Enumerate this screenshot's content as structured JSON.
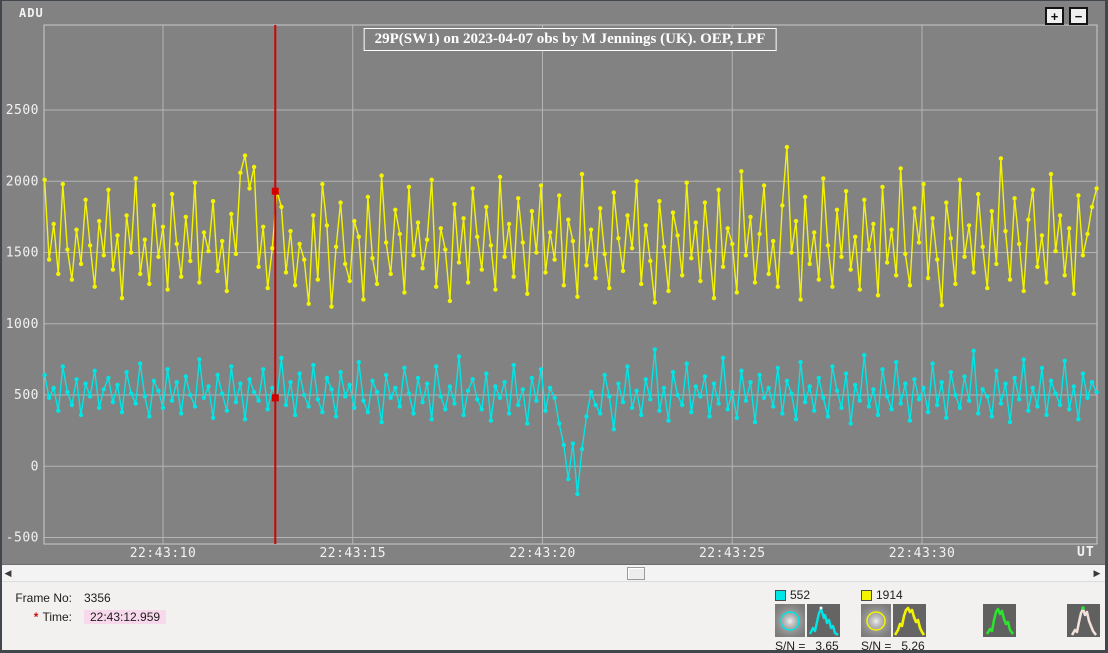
{
  "zoom_controls": {
    "zoom_in": "+",
    "zoom_out": "−"
  },
  "chart_data": {
    "type": "line",
    "title": "29P(SW1) on 2023-04-07 obs by M Jennings (UK).  OEP, LPF",
    "ylabel": "ADU",
    "xlabel": "UT",
    "ylim": [
      -560,
      3100
    ],
    "yticks": [
      2500,
      2000,
      1500,
      1000,
      500,
      0,
      -500
    ],
    "xticks": [
      {
        "t": 10,
        "label": "22:43:10"
      },
      {
        "t": 15,
        "label": "22:43:15"
      },
      {
        "t": 20,
        "label": "22:43:20"
      },
      {
        "t": 25,
        "label": "22:43:25"
      },
      {
        "t": 30,
        "label": "22:43:30"
      }
    ],
    "x_axis": {
      "prefix": "22:43:",
      "start_s": 6.88,
      "step_s": 0.12
    },
    "colors": {
      "background": "#828282",
      "grid": "#b4b4b4",
      "border": "#c9c9c9",
      "tick_text": "#f2f2f2",
      "cursor": "#d40000"
    },
    "cursor": {
      "frame": 3356,
      "time_s": 12.959,
      "markers": [
        {
          "series": "552",
          "value": 480
        },
        {
          "series": "1914",
          "value": 1930
        }
      ]
    },
    "series": [
      {
        "name": "552",
        "color": "#00e6e6",
        "values": [
          640,
          480,
          550,
          390,
          700,
          520,
          430,
          610,
          360,
          580,
          490,
          670,
          410,
          540,
          620,
          450,
          570,
          380,
          660,
          510,
          440,
          720,
          490,
          350,
          600,
          530,
          410,
          680,
          460,
          590,
          370,
          630,
          500,
          420,
          750,
          480,
          560,
          340,
          640,
          510,
          390,
          700,
          450,
          580,
          330,
          610,
          520,
          460,
          680,
          400,
          550,
          480,
          760,
          430,
          590,
          360,
          650,
          500,
          420,
          710,
          470,
          380,
          620,
          540,
          350,
          660,
          490,
          570,
          410,
          730,
          460,
          380,
          600,
          520,
          310,
          640,
          480,
          550,
          420,
          690,
          510,
          370,
          620,
          450,
          580,
          330,
          700,
          490,
          400,
          560,
          440,
          770,
          360,
          530,
          610,
          470,
          400,
          650,
          320,
          560,
          480,
          590,
          370,
          710,
          430,
          540,
          300,
          620,
          460,
          680,
          390,
          550,
          480,
          300,
          150,
          -90,
          160,
          -195,
          120,
          350,
          520,
          430,
          370,
          640,
          490,
          260,
          580,
          450,
          700,
          410,
          530,
          360,
          610,
          470,
          820,
          390,
          550,
          320,
          660,
          500,
          430,
          720,
          380,
          560,
          490,
          630,
          350,
          580,
          440,
          760,
          400,
          520,
          340,
          670,
          460,
          590,
          310,
          640,
          480,
          550,
          420,
          690,
          370,
          600,
          510,
          330,
          730,
          450,
          560,
          390,
          620,
          480,
          350,
          700,
          530,
          410,
          650,
          300,
          570,
          460,
          780,
          420,
          540,
          360,
          680,
          490,
          400,
          730,
          440,
          580,
          320,
          610,
          470,
          550,
          380,
          720,
          430,
          590,
          340,
          660,
          500,
          410,
          630,
          460,
          810,
          370,
          540,
          490,
          350,
          670,
          440,
          580,
          310,
          620,
          470,
          750,
          390,
          550,
          420,
          690,
          360,
          600,
          510,
          430,
          740,
          400,
          560,
          330,
          650,
          480,
          590,
          520
        ]
      },
      {
        "name": "1914",
        "color": "#f4f400",
        "values": [
          2010,
          1450,
          1700,
          1350,
          1980,
          1520,
          1310,
          1660,
          1420,
          1870,
          1550,
          1260,
          1720,
          1480,
          1940,
          1380,
          1620,
          1180,
          1760,
          1500,
          2020,
          1350,
          1590,
          1280,
          1830,
          1470,
          1680,
          1240,
          1910,
          1560,
          1330,
          1750,
          1440,
          1990,
          1290,
          1640,
          1510,
          1860,
          1370,
          1580,
          1230,
          1770,
          1490,
          2060,
          2180,
          1950,
          2100,
          1400,
          1680,
          1250,
          1530,
          1930,
          1820,
          1360,
          1650,
          1270,
          1560,
          1450,
          1140,
          1760,
          1310,
          1980,
          1690,
          1120,
          1540,
          1850,
          1420,
          1300,
          1720,
          1610,
          1170,
          1890,
          1460,
          1280,
          2040,
          1570,
          1350,
          1800,
          1630,
          1220,
          1960,
          1480,
          1710,
          1390,
          1590,
          2010,
          1260,
          1670,
          1520,
          1160,
          1840,
          1430,
          1740,
          1290,
          1950,
          1610,
          1380,
          1820,
          1550,
          1240,
          2030,
          1470,
          1700,
          1330,
          1880,
          1570,
          1210,
          1790,
          1500,
          1970,
          1360,
          1640,
          1450,
          1900,
          1270,
          1730,
          1580,
          1190,
          2050,
          1410,
          1660,
          1320,
          1810,
          1490,
          1250,
          1920,
          1600,
          1370,
          1760,
          1530,
          2000,
          1280,
          1690,
          1440,
          1150,
          1860,
          1540,
          1230,
          1780,
          1620,
          1340,
          1990,
          1460,
          1710,
          1300,
          1850,
          1510,
          1180,
          1940,
          1400,
          1670,
          1560,
          1220,
          2070,
          1480,
          1750,
          1290,
          1630,
          1970,
          1350,
          1580,
          1260,
          1830,
          2240,
          1500,
          1720,
          1170,
          1890,
          1420,
          1640,
          1310,
          2020,
          1550,
          1260,
          1800,
          1470,
          1930,
          1380,
          1610,
          1240,
          1870,
          1520,
          1700,
          1200,
          1960,
          1430,
          1660,
          1340,
          2090,
          1490,
          1270,
          1810,
          1570,
          1980,
          1320,
          1740,
          1450,
          1130,
          1850,
          1600,
          1280,
          2010,
          1470,
          1690,
          1360,
          1910,
          1540,
          1250,
          1790,
          1420,
          2160,
          1650,
          1310,
          1880,
          1560,
          1230,
          1730,
          1940,
          1400,
          1620,
          1290,
          2050,
          1510,
          1760,
          1340,
          1670,
          1210,
          1900,
          1480,
          1630,
          1820,
          1950
        ]
      }
    ]
  },
  "status": {
    "frame_label": "Frame No:",
    "frame_value": "3356",
    "time_marker": "*",
    "time_label": "Time:",
    "time_value": "22:43:12.959"
  },
  "legend": [
    {
      "label": "552",
      "color": "#00e6e6",
      "sn_label": "S/N =",
      "sn_value": "3.65"
    },
    {
      "label": "1914",
      "color": "#f4f400",
      "sn_label": "S/N =",
      "sn_value": "5.26"
    }
  ],
  "extra_profiles": [
    {
      "name": "fitted-psf-green",
      "color": "#2ce62c"
    },
    {
      "name": "fitted-psf-white",
      "color": "#f3e3da"
    }
  ]
}
